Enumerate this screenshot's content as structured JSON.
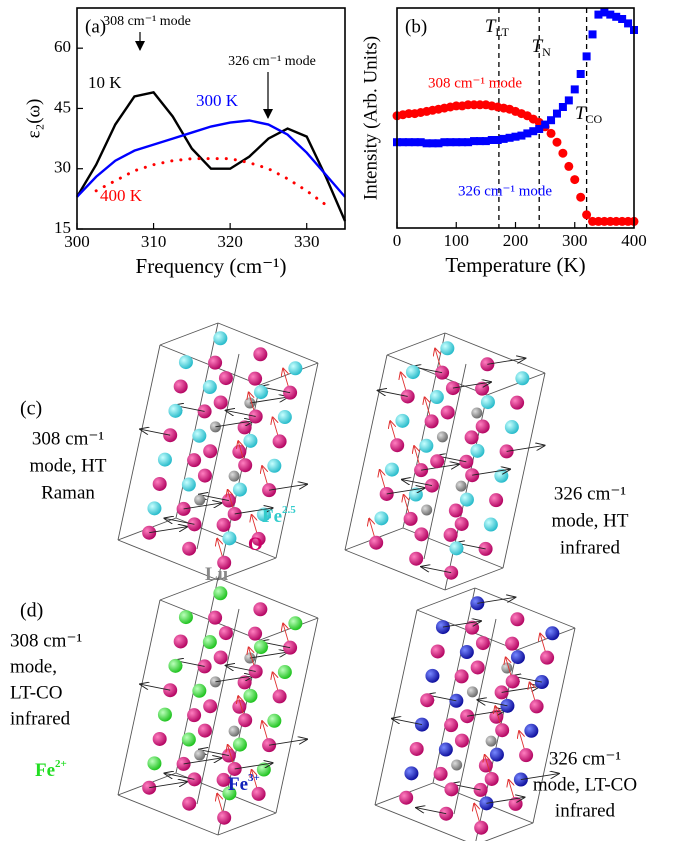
{
  "chart_data": [
    {
      "type": "line",
      "panel": "(a)",
      "x": [
        300,
        302.5,
        305,
        307.5,
        310,
        312.5,
        315,
        317.5,
        320,
        322.5,
        325,
        327.5,
        330,
        332.5,
        335
      ],
      "xlim": [
        300,
        335
      ],
      "xticks": [
        300,
        310,
        320,
        330
      ],
      "ylim": [
        15,
        70
      ],
      "yticks": [
        15,
        30,
        45,
        60
      ],
      "xlabel": "Frequency (cm⁻¹)",
      "ylabel": "ε₂(ω)",
      "series": [
        {
          "name": "10 K",
          "color": "#000000",
          "style": "solid",
          "values": [
            23,
            31,
            41,
            48,
            49,
            43,
            35,
            30,
            30,
            33,
            37.5,
            40,
            38,
            28,
            17
          ]
        },
        {
          "name": "300 K",
          "color": "#0000ff",
          "style": "solid",
          "values": [
            23,
            28,
            32,
            34.5,
            36,
            37.5,
            39,
            40.5,
            41.5,
            42,
            41,
            38.5,
            34,
            28.5,
            23
          ]
        },
        {
          "name": "400 K",
          "color": "#ff0000",
          "style": "dotted",
          "values": [
            null,
            24.5,
            27,
            29.5,
            31,
            32,
            32.5,
            32.5,
            32.5,
            31.5,
            30,
            27.5,
            24.5,
            21,
            null
          ]
        }
      ],
      "annotations": [
        "308 cm⁻¹ mode",
        "326 cm⁻¹ mode"
      ]
    },
    {
      "type": "scatter",
      "panel": "(b)",
      "x": [
        0,
        10,
        20,
        30,
        40,
        50,
        60,
        70,
        80,
        90,
        100,
        110,
        120,
        130,
        140,
        150,
        160,
        170,
        180,
        190,
        200,
        210,
        220,
        230,
        240,
        250,
        260,
        270,
        280,
        290,
        300,
        310,
        320,
        330,
        340,
        350,
        360,
        370,
        380,
        390,
        400
      ],
      "xlim": [
        0,
        400
      ],
      "xticks": [
        0,
        100,
        200,
        300,
        400
      ],
      "ylim": [
        0,
        100
      ],
      "xlabel": "Temperature (K)",
      "ylabel": "Intensity (Arb. Units)",
      "series": [
        {
          "name": "308 cm⁻¹ mode",
          "color": "#ff0000",
          "marker": "circle",
          "values": [
            51,
            51.5,
            52,
            52,
            52.5,
            53,
            53.5,
            54,
            54.5,
            55,
            55.5,
            55.5,
            56,
            56,
            56,
            56,
            55.5,
            55,
            54.5,
            54,
            53,
            52,
            51,
            49.5,
            48,
            46,
            43,
            39,
            34,
            28,
            22,
            14,
            6,
            3,
            3,
            3,
            3,
            3,
            3,
            3,
            3
          ]
        },
        {
          "name": "326 cm⁻¹ mode",
          "color": "#0000ff",
          "marker": "square",
          "values": [
            39,
            39,
            39,
            39,
            39,
            38.5,
            38.5,
            38.5,
            39,
            39,
            39,
            39,
            39,
            39.5,
            39.5,
            39.5,
            40,
            40,
            40.5,
            41,
            41.5,
            42,
            43,
            44,
            45,
            47,
            49,
            52,
            55,
            58,
            63,
            70,
            78,
            88,
            97,
            98,
            97,
            96,
            95,
            93,
            90
          ]
        }
      ],
      "vlines": [
        {
          "label": "T",
          "sub": "LT",
          "x": 172
        },
        {
          "label": "T",
          "sub": "N",
          "x": 240
        },
        {
          "label": "T",
          "sub": "CO",
          "x": 320
        }
      ]
    }
  ],
  "panels": [
    {
      "label": "(c)",
      "left": [
        "308 cm⁻¹",
        "mode, HT",
        "Raman"
      ],
      "right": [
        "326 cm⁻¹",
        "mode, HT",
        "infrared"
      ],
      "atoms": [
        {
          "text": "Fe",
          "sup": "2.5",
          "color": "#33cccc"
        },
        {
          "text": "O",
          "color": "#cc0066"
        },
        {
          "text": "Lu",
          "color": "#888888"
        }
      ]
    },
    {
      "label": "(d)",
      "left": [
        "308 cm⁻¹",
        "mode,",
        "LT-CO",
        "infrared"
      ],
      "right": [
        "326 cm⁻¹",
        "mode, LT-CO",
        "infrared"
      ],
      "atoms": [
        {
          "text": "Fe",
          "sup": "2+",
          "color": "#22dd22"
        },
        {
          "text": "Fe",
          "sup": "3+",
          "color": "#1122bb"
        }
      ]
    }
  ]
}
